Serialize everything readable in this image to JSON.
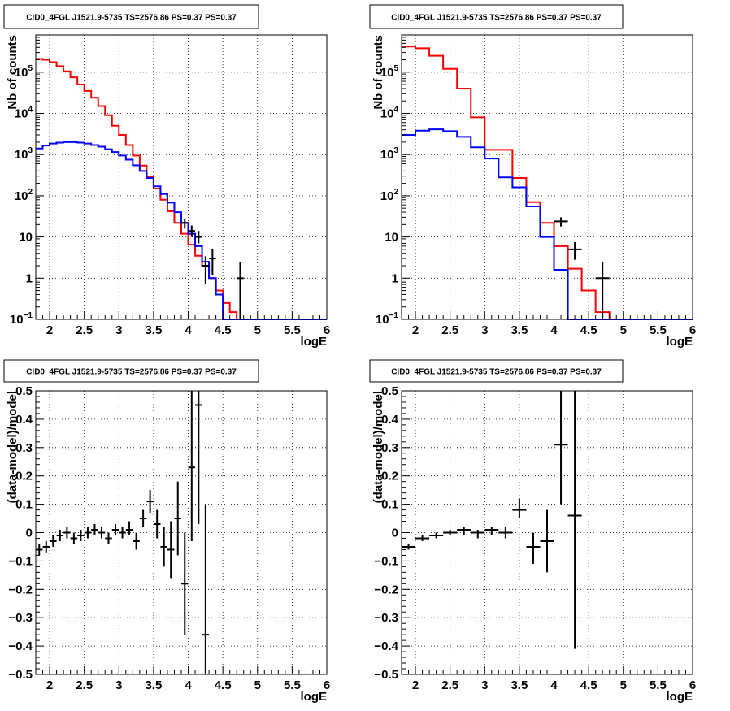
{
  "chart_data": [
    {
      "type": "line",
      "title": "CID0_4FGL J1521.9-5735 TS=2576.86 PS=0.37 PS=0.37",
      "xlabel": "logE",
      "ylabel": "Nb of counts",
      "xlim": [
        1.8,
        6.0
      ],
      "ylim": [
        0.1,
        800000
      ],
      "ylog": true,
      "grid": true,
      "xticks": [
        "2",
        "2.5",
        "3",
        "3.5",
        "4",
        "4.5",
        "5",
        "5.5",
        "6"
      ],
      "yticks": [
        {
          "v": 0.1,
          "base": "10",
          "sup": "−1"
        },
        {
          "v": 1,
          "base": "1",
          "sup": ""
        },
        {
          "v": 10,
          "base": "10",
          "sup": ""
        },
        {
          "v": 100,
          "base": "10",
          "sup": "2"
        },
        {
          "v": 1000,
          "base": "10",
          "sup": "3"
        },
        {
          "v": 10000,
          "base": "10",
          "sup": "4"
        },
        {
          "v": 100000,
          "base": "10",
          "sup": "5"
        }
      ],
      "bin_width": 0.1,
      "series": [
        {
          "color": "#ff0000",
          "style": "step",
          "x_start": 1.8,
          "values": [
            210000,
            200000,
            175000,
            140000,
            105000,
            75000,
            50000,
            35000,
            24000,
            15000,
            9000,
            5000,
            3000,
            1700,
            950,
            540,
            290,
            150,
            80,
            42,
            22,
            12,
            6.5,
            3.5,
            2,
            1,
            0.5,
            0.25,
            0.15,
            0.1,
            0.1,
            0.1,
            0.1,
            0.1,
            0.1,
            0.1,
            0.1,
            0.1,
            0.1,
            0.1,
            0.1,
            0.1
          ]
        },
        {
          "color": "#0000ff",
          "style": "step",
          "x_start": 1.8,
          "values": [
            1400,
            1650,
            1850,
            1950,
            2000,
            2000,
            1950,
            1850,
            1700,
            1550,
            1350,
            1150,
            950,
            750,
            550,
            400,
            270,
            170,
            110,
            68,
            40,
            22,
            12,
            6,
            2.5,
            1,
            0.4,
            0.1,
            0.1,
            0.1,
            0.1,
            0.1,
            0.1,
            0.1,
            0.1,
            0.1,
            0.1,
            0.1,
            0.1,
            0.1,
            0.1,
            0.1
          ]
        },
        {
          "color": "#000000",
          "style": "points",
          "points": [
            {
              "x": 3.95,
              "y": 22,
              "lo": 16,
              "hi": 28,
              "xerr": 0.05
            },
            {
              "x": 4.05,
              "y": 14,
              "lo": 10,
              "hi": 19,
              "xerr": 0.05
            },
            {
              "x": 4.15,
              "y": 10,
              "lo": 7,
              "hi": 14,
              "xerr": 0.05
            },
            {
              "x": 4.25,
              "y": 2,
              "lo": 0.7,
              "hi": 3.4,
              "xerr": 0.05
            },
            {
              "x": 4.35,
              "y": 3,
              "lo": 1.2,
              "hi": 5,
              "xerr": 0.05
            },
            {
              "x": 4.75,
              "y": 1,
              "lo": 0.1,
              "hi": 2.5,
              "xerr": 0.05
            }
          ]
        }
      ]
    },
    {
      "type": "line",
      "title": "CID0_4FGL J1521.9-5735 TS=2576.86 PS=0.37 PS=0.37",
      "xlabel": "logE",
      "ylabel": "Nb of counts",
      "xlim": [
        1.8,
        6.0
      ],
      "ylim": [
        0.1,
        800000
      ],
      "ylog": true,
      "grid": true,
      "xticks": [
        "2",
        "2.5",
        "3",
        "3.5",
        "4",
        "4.5",
        "5",
        "5.5",
        "6"
      ],
      "yticks": [
        {
          "v": 0.1,
          "base": "10",
          "sup": "−1"
        },
        {
          "v": 1,
          "base": "1",
          "sup": ""
        },
        {
          "v": 10,
          "base": "10",
          "sup": ""
        },
        {
          "v": 100,
          "base": "10",
          "sup": "2"
        },
        {
          "v": 1000,
          "base": "10",
          "sup": "3"
        },
        {
          "v": 10000,
          "base": "10",
          "sup": "4"
        },
        {
          "v": 100000,
          "base": "10",
          "sup": "5"
        }
      ],
      "bin_width": 0.2,
      "series": [
        {
          "color": "#ff0000",
          "style": "step",
          "x_start": 1.8,
          "values": [
            420000,
            380000,
            250000,
            120000,
            40000,
            8000,
            1300,
            1300,
            270,
            70,
            22,
            6,
            1.7,
            0.5,
            0.15,
            0.1,
            0.1,
            0.1,
            0.1,
            0.1,
            0.1
          ]
        },
        {
          "color": "#0000ff",
          "style": "step",
          "x_start": 1.8,
          "values": [
            3000,
            3800,
            4100,
            3700,
            2700,
            1500,
            800,
            280,
            160,
            55,
            10,
            1.6,
            0.1,
            0.1,
            0.1,
            0.1,
            0.1,
            0.1,
            0.1,
            0.1,
            0.1
          ]
        },
        {
          "color": "#000000",
          "style": "points",
          "points": [
            {
              "x": 4.1,
              "y": 24,
              "lo": 18,
              "hi": 30,
              "xerr": 0.1
            },
            {
              "x": 4.3,
              "y": 5,
              "lo": 2.8,
              "hi": 7.5,
              "xerr": 0.1
            },
            {
              "x": 4.7,
              "y": 1,
              "lo": 0.1,
              "hi": 2.5,
              "xerr": 0.1
            }
          ]
        }
      ]
    },
    {
      "type": "scatter",
      "title": "CID0_4FGL J1521.9-5735 TS=2576.86 PS=0.37 PS=0.37",
      "xlabel": "logE",
      "ylabel": "(data-model)/model",
      "xlim": [
        1.8,
        6.0
      ],
      "ylim": [
        -0.5,
        0.5
      ],
      "ylog": false,
      "grid": true,
      "xticks": [
        "2",
        "2.5",
        "3",
        "3.5",
        "4",
        "4.5",
        "5",
        "5.5",
        "6"
      ],
      "yticks": [
        {
          "v": -0.5,
          "base": "−0.5",
          "sup": ""
        },
        {
          "v": -0.4,
          "base": "−0.4",
          "sup": ""
        },
        {
          "v": -0.3,
          "base": "−0.3",
          "sup": ""
        },
        {
          "v": -0.2,
          "base": "−0.2",
          "sup": ""
        },
        {
          "v": -0.1,
          "base": "−0.1",
          "sup": ""
        },
        {
          "v": 0,
          "base": "0",
          "sup": ""
        },
        {
          "v": 0.1,
          "base": "0.1",
          "sup": ""
        },
        {
          "v": 0.2,
          "base": "0.2",
          "sup": ""
        },
        {
          "v": 0.3,
          "base": "0.3",
          "sup": ""
        },
        {
          "v": 0.4,
          "base": "0.4",
          "sup": ""
        },
        {
          "v": 0.5,
          "base": "0.5",
          "sup": ""
        }
      ],
      "series": [
        {
          "color": "#000000",
          "style": "points",
          "points": [
            {
              "x": 1.85,
              "y": -0.06,
              "lo": -0.08,
              "hi": -0.04,
              "xerr": 0.05
            },
            {
              "x": 1.95,
              "y": -0.05,
              "lo": -0.07,
              "hi": -0.03,
              "xerr": 0.05
            },
            {
              "x": 2.05,
              "y": -0.03,
              "lo": -0.05,
              "hi": -0.01,
              "xerr": 0.05
            },
            {
              "x": 2.15,
              "y": -0.01,
              "lo": -0.03,
              "hi": 0.01,
              "xerr": 0.05
            },
            {
              "x": 2.25,
              "y": 0.0,
              "lo": -0.02,
              "hi": 0.02,
              "xerr": 0.05
            },
            {
              "x": 2.35,
              "y": -0.02,
              "lo": -0.04,
              "hi": 0.0,
              "xerr": 0.05
            },
            {
              "x": 2.45,
              "y": -0.01,
              "lo": -0.03,
              "hi": 0.01,
              "xerr": 0.05
            },
            {
              "x": 2.55,
              "y": 0.0,
              "lo": -0.02,
              "hi": 0.02,
              "xerr": 0.05
            },
            {
              "x": 2.65,
              "y": 0.01,
              "lo": -0.01,
              "hi": 0.03,
              "xerr": 0.05
            },
            {
              "x": 2.75,
              "y": 0.0,
              "lo": -0.02,
              "hi": 0.02,
              "xerr": 0.05
            },
            {
              "x": 2.85,
              "y": -0.02,
              "lo": -0.04,
              "hi": 0.0,
              "xerr": 0.05
            },
            {
              "x": 2.95,
              "y": 0.01,
              "lo": -0.01,
              "hi": 0.03,
              "xerr": 0.05
            },
            {
              "x": 3.05,
              "y": 0.0,
              "lo": -0.02,
              "hi": 0.02,
              "xerr": 0.05
            },
            {
              "x": 3.15,
              "y": 0.01,
              "lo": -0.01,
              "hi": 0.04,
              "xerr": 0.05
            },
            {
              "x": 3.25,
              "y": -0.03,
              "lo": -0.06,
              "hi": 0.0,
              "xerr": 0.05
            },
            {
              "x": 3.35,
              "y": 0.05,
              "lo": 0.02,
              "hi": 0.08,
              "xerr": 0.05
            },
            {
              "x": 3.45,
              "y": 0.11,
              "lo": 0.07,
              "hi": 0.15,
              "xerr": 0.05
            },
            {
              "x": 3.55,
              "y": 0.03,
              "lo": -0.02,
              "hi": 0.08,
              "xerr": 0.05
            },
            {
              "x": 3.65,
              "y": -0.05,
              "lo": -0.12,
              "hi": 0.02,
              "xerr": 0.05
            },
            {
              "x": 3.75,
              "y": -0.06,
              "lo": -0.16,
              "hi": 0.04,
              "xerr": 0.05
            },
            {
              "x": 3.85,
              "y": 0.05,
              "lo": -0.08,
              "hi": 0.18,
              "xerr": 0.05
            },
            {
              "x": 3.95,
              "y": -0.18,
              "lo": -0.36,
              "hi": 0.0,
              "xerr": 0.05
            },
            {
              "x": 4.05,
              "y": 0.23,
              "lo": -0.03,
              "hi": 0.5,
              "xerr": 0.05
            },
            {
              "x": 4.15,
              "y": 0.45,
              "lo": 0.03,
              "hi": 0.5,
              "xerr": 0.05
            },
            {
              "x": 4.25,
              "y": -0.36,
              "lo": -0.5,
              "hi": 0.1,
              "xerr": 0.05
            }
          ]
        }
      ]
    },
    {
      "type": "scatter",
      "title": "CID0_4FGL J1521.9-5735 TS=2576.86 PS=0.37 PS=0.37",
      "xlabel": "logE",
      "ylabel": "(data-model)/model",
      "xlim": [
        1.8,
        6.0
      ],
      "ylim": [
        -0.5,
        0.5
      ],
      "ylog": false,
      "grid": true,
      "xticks": [
        "2",
        "2.5",
        "3",
        "3.5",
        "4",
        "4.5",
        "5",
        "5.5",
        "6"
      ],
      "yticks": [
        {
          "v": -0.5,
          "base": "−0.5",
          "sup": ""
        },
        {
          "v": -0.4,
          "base": "−0.4",
          "sup": ""
        },
        {
          "v": -0.3,
          "base": "−0.3",
          "sup": ""
        },
        {
          "v": -0.2,
          "base": "−0.2",
          "sup": ""
        },
        {
          "v": -0.1,
          "base": "−0.1",
          "sup": ""
        },
        {
          "v": 0,
          "base": "0",
          "sup": ""
        },
        {
          "v": 0.1,
          "base": "0.1",
          "sup": ""
        },
        {
          "v": 0.2,
          "base": "0.2",
          "sup": ""
        },
        {
          "v": 0.3,
          "base": "0.3",
          "sup": ""
        },
        {
          "v": 0.4,
          "base": "0.4",
          "sup": ""
        },
        {
          "v": 0.5,
          "base": "0.5",
          "sup": ""
        }
      ],
      "series": [
        {
          "color": "#000000",
          "style": "points",
          "points": [
            {
              "x": 1.9,
              "y": -0.05,
              "lo": -0.06,
              "hi": -0.04,
              "xerr": 0.1
            },
            {
              "x": 2.1,
              "y": -0.02,
              "lo": -0.03,
              "hi": -0.01,
              "xerr": 0.1
            },
            {
              "x": 2.3,
              "y": -0.01,
              "lo": -0.02,
              "hi": 0.0,
              "xerr": 0.1
            },
            {
              "x": 2.5,
              "y": 0.0,
              "lo": -0.01,
              "hi": 0.01,
              "xerr": 0.1
            },
            {
              "x": 2.7,
              "y": 0.01,
              "lo": -0.01,
              "hi": 0.02,
              "xerr": 0.1
            },
            {
              "x": 2.9,
              "y": 0.0,
              "lo": -0.02,
              "hi": 0.01,
              "xerr": 0.1
            },
            {
              "x": 3.1,
              "y": 0.01,
              "lo": -0.01,
              "hi": 0.02,
              "xerr": 0.1
            },
            {
              "x": 3.3,
              "y": 0.0,
              "lo": -0.02,
              "hi": 0.02,
              "xerr": 0.1
            },
            {
              "x": 3.5,
              "y": 0.08,
              "lo": 0.05,
              "hi": 0.12,
              "xerr": 0.1
            },
            {
              "x": 3.7,
              "y": -0.05,
              "lo": -0.11,
              "hi": 0.0,
              "xerr": 0.1
            },
            {
              "x": 3.9,
              "y": -0.03,
              "lo": -0.14,
              "hi": 0.08,
              "xerr": 0.1
            },
            {
              "x": 4.1,
              "y": 0.31,
              "lo": 0.1,
              "hi": 0.5,
              "xerr": 0.1
            },
            {
              "x": 4.3,
              "y": 0.06,
              "lo": -0.41,
              "hi": 0.5,
              "xerr": 0.1
            }
          ]
        }
      ]
    }
  ]
}
